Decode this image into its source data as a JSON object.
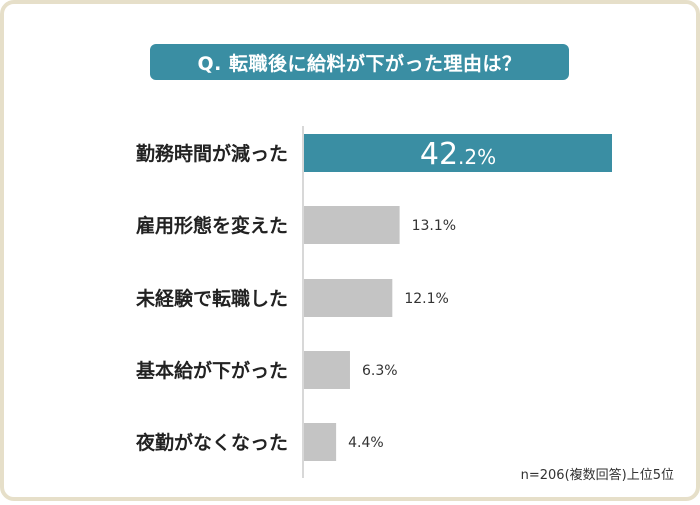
{
  "title": "Q. 転職後に給料が下がった理由は？",
  "note": "n=206(複数回答)上位5位",
  "colors": {
    "highlight": "#3a8ea3",
    "bar": "#c4c4c4",
    "axis": "#cccccc"
  },
  "chart_data": {
    "type": "bar",
    "orientation": "horizontal",
    "title": "Q. 転職後に給料が下がった理由は？",
    "categories": [
      "勤務時間が減った",
      "雇用形態を変えた",
      "未経験で転職した",
      "基本給が下がった",
      "夜勤がなくなった"
    ],
    "values": [
      42.2,
      13.1,
      12.1,
      6.3,
      4.4
    ],
    "value_labels": [
      "42.2%",
      "13.1%",
      "12.1%",
      "6.3%",
      "4.4%"
    ],
    "unit": "%",
    "highlight_index": 0,
    "xlim": [
      0,
      42.2
    ],
    "grid": false,
    "legend": "none"
  }
}
